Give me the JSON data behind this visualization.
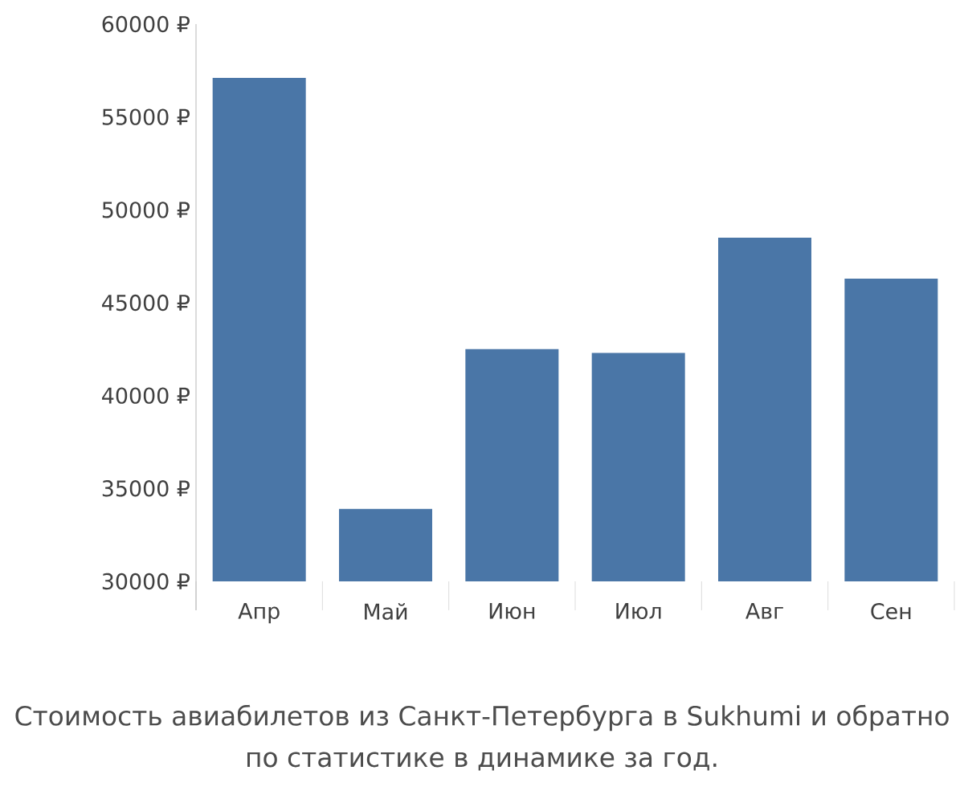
{
  "chart_data": {
    "type": "bar",
    "categories": [
      "Апр",
      "Май",
      "Июн",
      "Июл",
      "Авг",
      "Сен"
    ],
    "values": [
      57100,
      33900,
      42500,
      42300,
      48500,
      46300
    ],
    "color": "#4a76a7",
    "ylim": [
      30000,
      60000
    ],
    "yticks": [
      {
        "value": 30000,
        "label": "30000 ₽"
      },
      {
        "value": 35000,
        "label": "35000 ₽"
      },
      {
        "value": 40000,
        "label": "40000 ₽"
      },
      {
        "value": 45000,
        "label": "45000 ₽"
      },
      {
        "value": 50000,
        "label": "50000 ₽"
      },
      {
        "value": 55000,
        "label": "55000 ₽"
      },
      {
        "value": 60000,
        "label": "60000 ₽"
      }
    ],
    "grid": false,
    "annotations": [
      "Стоимость авиабилетов из Санкт-Петербурга в Sukhumi и обратно",
      "по статистике в динамике за год."
    ]
  }
}
